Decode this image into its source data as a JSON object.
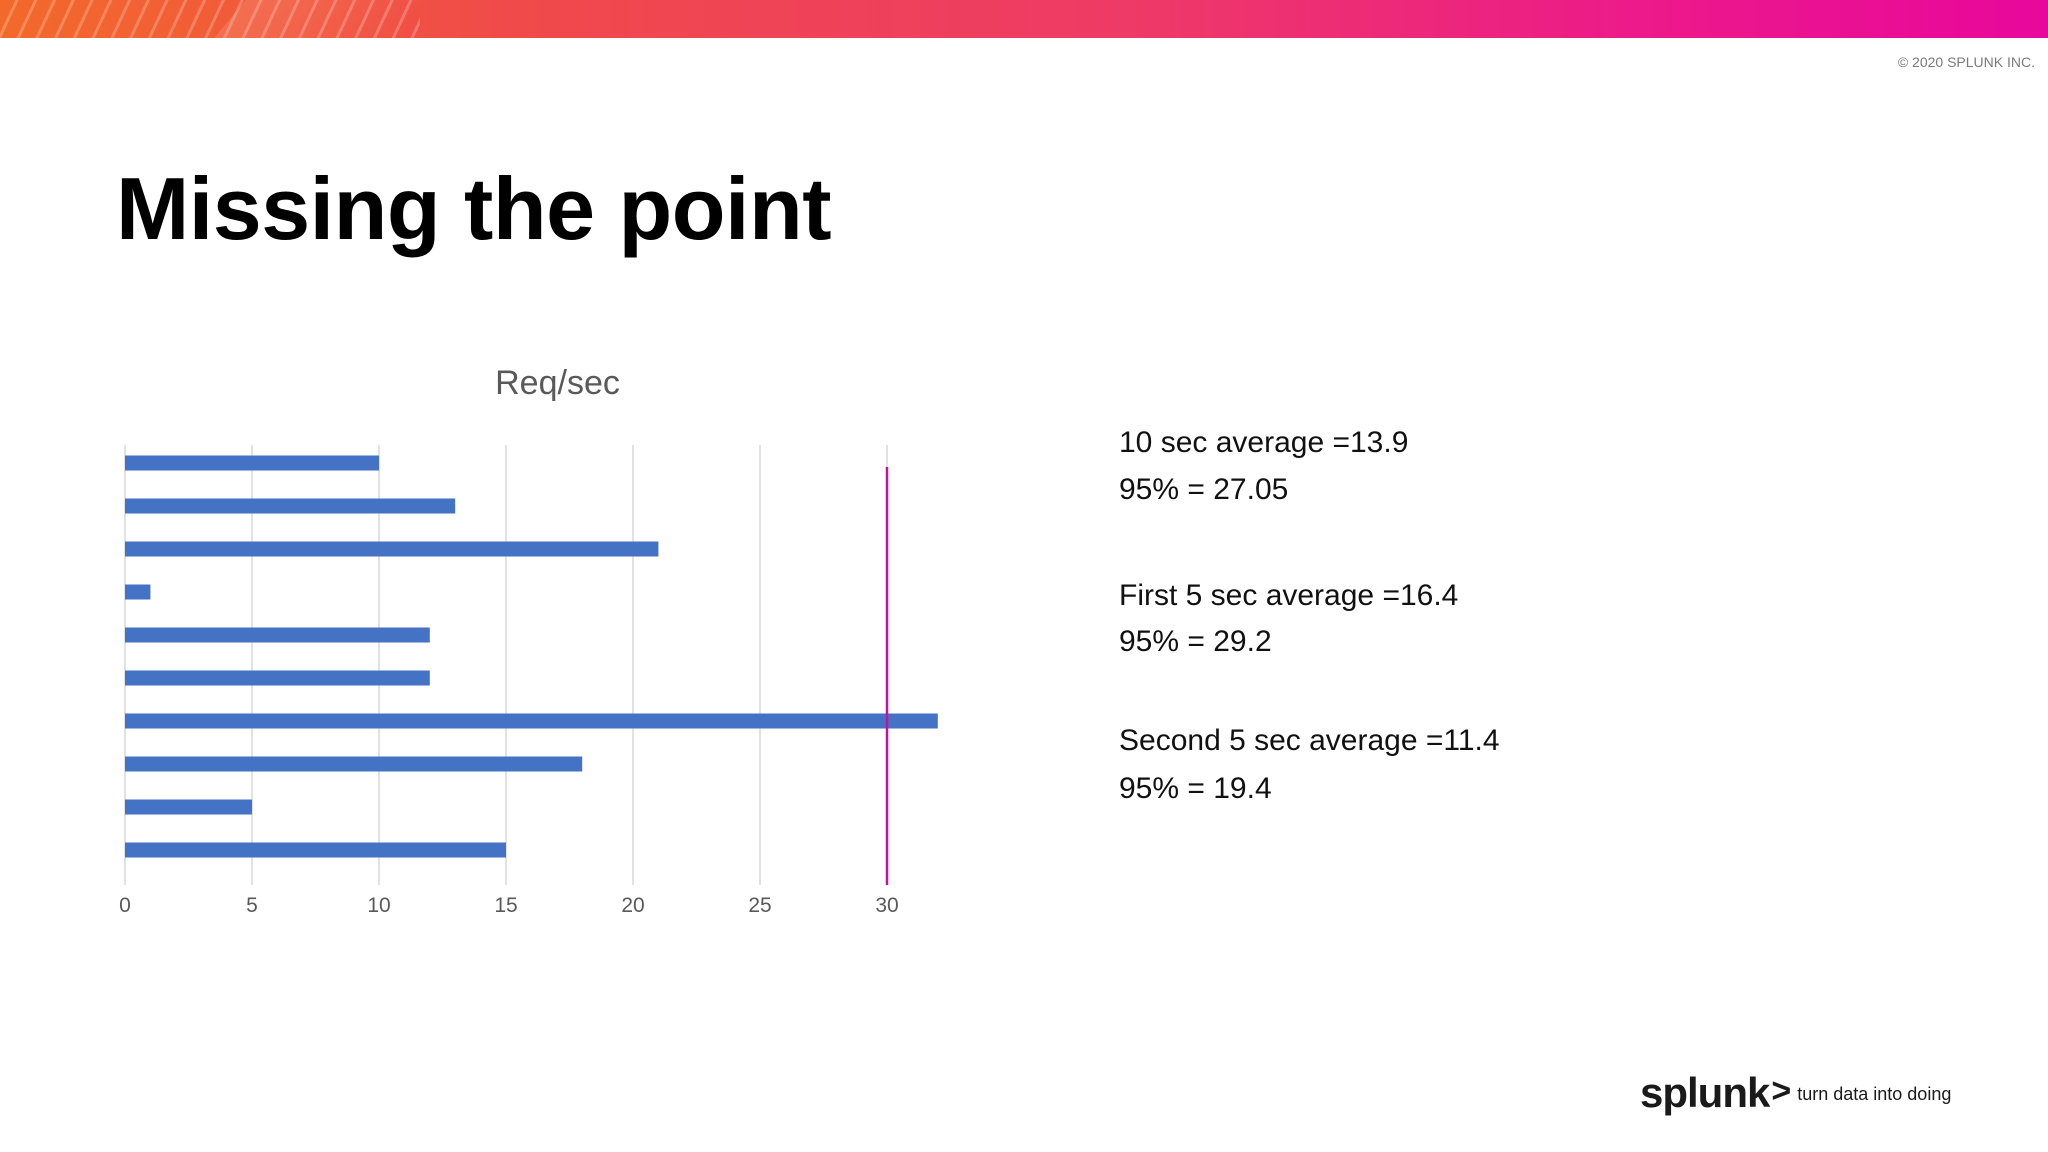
{
  "header": {
    "copyright": "© 2020 SPLUNK INC."
  },
  "slide": {
    "title": "Missing the point"
  },
  "chart_data": {
    "type": "bar",
    "orientation": "horizontal",
    "title": "Req/sec",
    "xlabel": "",
    "ylabel": "",
    "xlim": [
      0,
      33
    ],
    "xticks": [
      0,
      5,
      10,
      15,
      20,
      25,
      30
    ],
    "grid": true,
    "bar_color": "#4472c4",
    "values": [
      10,
      13,
      21,
      1,
      12,
      12,
      32,
      18,
      5,
      15
    ],
    "reference_line": {
      "value": 30,
      "color": "#c0159a"
    }
  },
  "stats": [
    {
      "text": "10 sec average =13.9"
    },
    {
      "text": "95% = 27.05"
    },
    {
      "text": "First 5 sec average =16.4"
    },
    {
      "text": "95% = 29.2"
    },
    {
      "text": "Second 5 sec average  =11.4"
    },
    {
      "text": "95% = 19.4"
    }
  ],
  "footer": {
    "logo_word": "splunk",
    "logo_chevron": ">",
    "tagline": "turn data into doing"
  }
}
